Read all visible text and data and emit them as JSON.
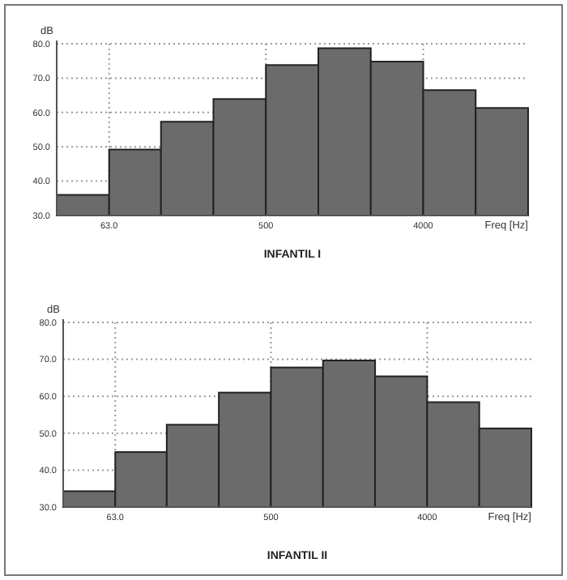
{
  "chart_data": [
    {
      "type": "histogram",
      "title": "INFANTIL I",
      "xlabel": "Freq [Hz]",
      "ylabel": "dB",
      "log": "x",
      "bins": [
        31.5,
        63,
        125,
        250,
        500,
        1000,
        2000,
        4000,
        8000,
        16000
      ],
      "values": [
        36,
        49.2,
        57.3,
        63.9,
        73.8,
        78.7,
        74.8,
        66.5,
        61.3
      ],
      "color": "#6b6b6b",
      "xlim": [
        31.5,
        16000
      ],
      "xticks": [
        {
          "value": 63,
          "label": "63.0"
        },
        {
          "value": 500,
          "label": "500"
        },
        {
          "value": 4000,
          "label": "4000"
        }
      ],
      "ylim": [
        30,
        80
      ],
      "yticks": [
        {
          "value": 30,
          "label": "30.0"
        },
        {
          "value": 40,
          "label": "40.0"
        },
        {
          "value": 50,
          "label": "50.0"
        },
        {
          "value": 60,
          "label": "60.0"
        },
        {
          "value": 70,
          "label": "70.0"
        },
        {
          "value": 80,
          "label": "80.0"
        }
      ],
      "grid": true
    },
    {
      "type": "histogram",
      "title": "INFANTIL II",
      "xlabel": "Freq [Hz]",
      "ylabel": "dB",
      "log": "x",
      "bins": [
        31.5,
        63,
        125,
        250,
        500,
        1000,
        2000,
        4000,
        8000,
        16000
      ],
      "values": [
        34.3,
        44.9,
        52.3,
        61,
        67.8,
        69.7,
        65.4,
        58.4,
        51.3
      ],
      "color": "#6b6b6b",
      "xlim": [
        31.5,
        16000
      ],
      "xticks": [
        {
          "value": 63,
          "label": "63.0"
        },
        {
          "value": 500,
          "label": "500"
        },
        {
          "value": 4000,
          "label": "4000"
        }
      ],
      "ylim": [
        30,
        80
      ],
      "yticks": [
        {
          "value": 30,
          "label": "30.0"
        },
        {
          "value": 40,
          "label": "40.0"
        },
        {
          "value": 50,
          "label": "50.0"
        },
        {
          "value": 60,
          "label": "60.0"
        },
        {
          "value": 70,
          "label": "70.0"
        },
        {
          "value": 80,
          "label": "80.0"
        }
      ],
      "grid": true
    }
  ]
}
